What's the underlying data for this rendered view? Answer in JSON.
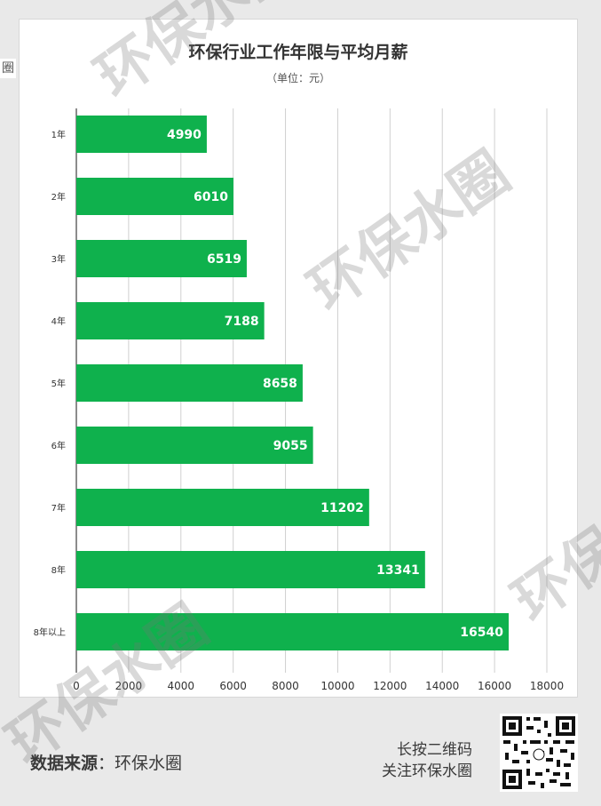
{
  "chart_data": {
    "type": "bar",
    "orientation": "horizontal",
    "title": "环保行业工作年限与平均月薪",
    "subtitle": "（单位：元）",
    "categories": [
      "1年",
      "2年",
      "3年",
      "4年",
      "5年",
      "6年",
      "7年",
      "8年",
      "8年以上"
    ],
    "values": [
      4990,
      6010,
      6519,
      7188,
      8658,
      9055,
      11202,
      13341,
      16540
    ],
    "xticks": [
      "0",
      "2000",
      "4000",
      "6000",
      "8000",
      "10000",
      "12000",
      "14000",
      "16000",
      "18000"
    ],
    "xlim": [
      0,
      18000
    ],
    "grid": true,
    "bar_color": "#0fb14d",
    "label_color": "#ffffff"
  },
  "footer": {
    "source_label": "数据来源",
    "source_sep": "：",
    "source_value": "环保水圈",
    "cta_line1": "长按二维码",
    "cta_line2": "关注环保水圈"
  },
  "watermark": "环保水圈",
  "side_char": "圈",
  "qr_icon": "qr-code-icon"
}
